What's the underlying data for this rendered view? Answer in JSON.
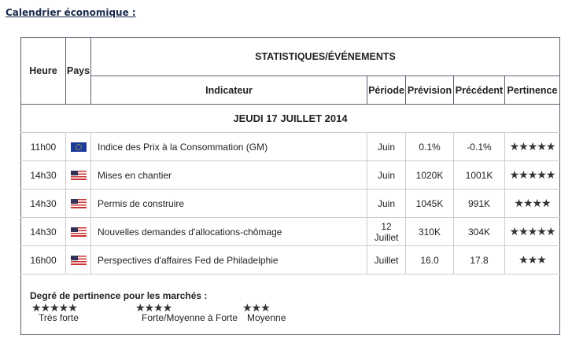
{
  "title": "Calendrier économique :",
  "headers": {
    "heure": "Heure",
    "pays": "Pays",
    "group": "STATISTIQUES/ÉVÉNEMENTS",
    "indicateur": "Indicateur",
    "periode": "Période",
    "prevision": "Prévision",
    "precedent": "Précédent",
    "pertinence": "Pertinence"
  },
  "date": "JEUDI 17 JUILLET 2014",
  "rows": [
    {
      "heure": "11h00",
      "pays": "eu-flag-icon",
      "indicateur": "Indice des Prix à la Consommation (GM)",
      "periode": "Juin",
      "prevision": "0.1%",
      "precedent": "-0.1%",
      "pertinence": "★★★★★",
      "stars": 5
    },
    {
      "heure": "14h30",
      "pays": "us-flag-icon",
      "indicateur": "Mises en chantier",
      "periode": "Juin",
      "prevision": "1020K",
      "precedent": "1001K",
      "pertinence": "★★★★★",
      "stars": 5
    },
    {
      "heure": "14h30",
      "pays": "us-flag-icon",
      "indicateur": "Permis de construire",
      "periode": "Juin",
      "prevision": "1045K",
      "precedent": "991K",
      "pertinence": "★★★★",
      "stars": 4
    },
    {
      "heure": "14h30",
      "pays": "us-flag-icon",
      "indicateur": "Nouvelles demandes d'allocations-chômage",
      "periode": "12 Juillet",
      "prevision": "310K",
      "precedent": "304K",
      "pertinence": "★★★★★",
      "stars": 5
    },
    {
      "heure": "16h00",
      "pays": "us-flag-icon",
      "indicateur": "Perspectives d'affaires Fed de Philadelphie",
      "periode": "Juillet",
      "prevision": "16.0",
      "precedent": "17.8",
      "pertinence": "★★★",
      "stars": 3
    }
  ],
  "legend": {
    "heading": "Degré de pertinence pour les marchés :",
    "items": [
      {
        "stars": "★★★★★",
        "label": "Très forte"
      },
      {
        "stars": "★★★★",
        "label": "Forte/Moyenne à Forte"
      },
      {
        "stars": "★★★",
        "label": "Moyenne"
      }
    ]
  },
  "colors": {
    "title": "#1a2a4a",
    "border": "#5a6270",
    "stars": "#333333"
  }
}
